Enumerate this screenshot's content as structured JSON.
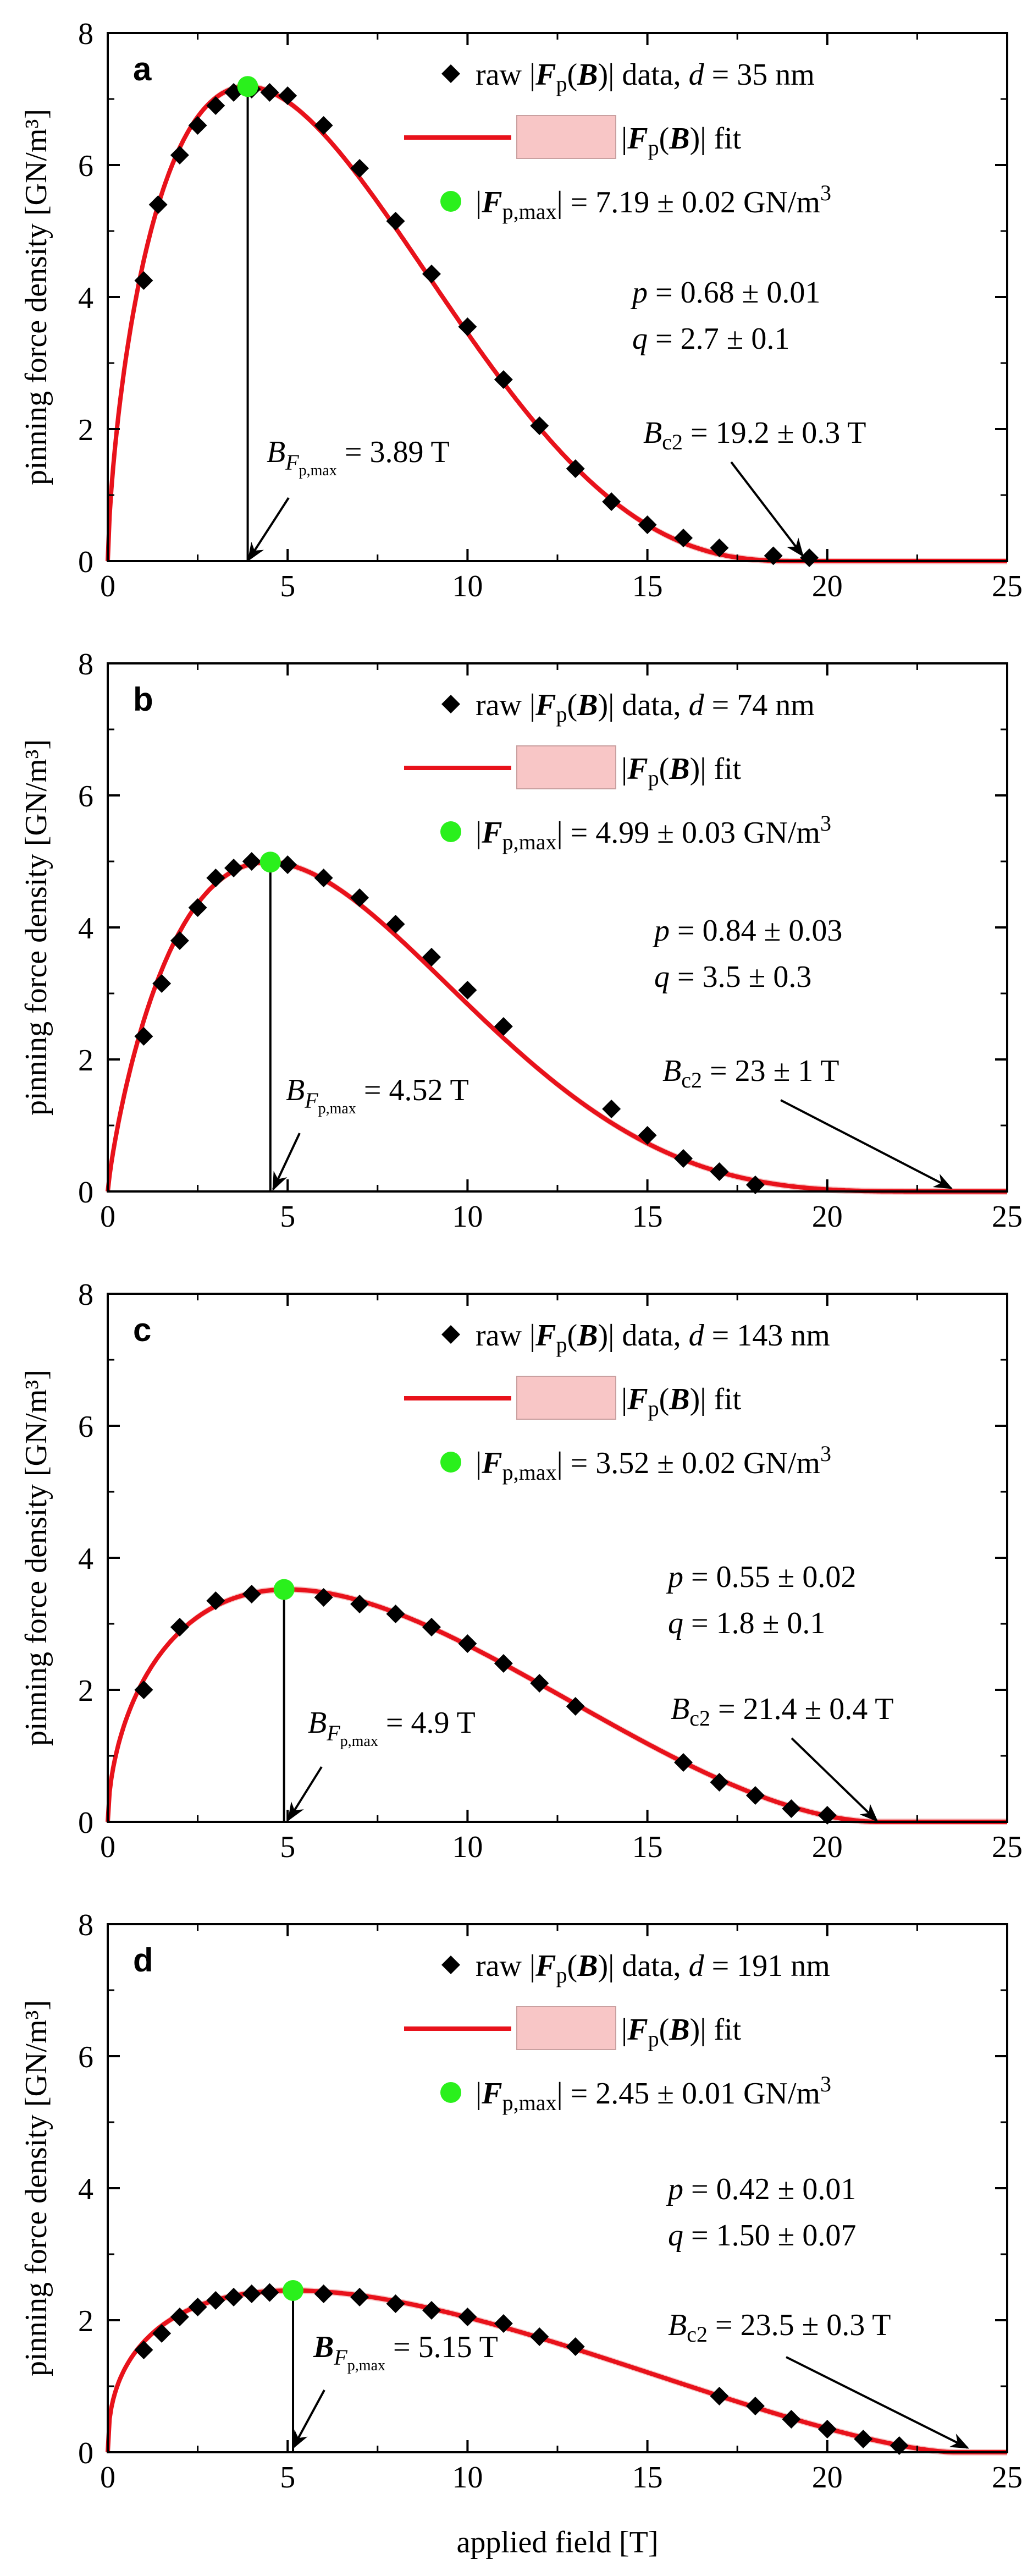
{
  "figure": {
    "y_axis_label": "pinning force density [GN/m³]",
    "x_axis_label": "applied field [T]",
    "colors": {
      "fit_line": "#e8121b",
      "fit_band": "#f8c6c6",
      "max_point": "#2af01c",
      "data_marker": "#000000",
      "axis": "#000000"
    }
  },
  "chart_data": [
    {
      "type": "line",
      "panel_letter": "a",
      "xlim": [
        0,
        25
      ],
      "ylim": [
        0,
        8
      ],
      "xticks": [
        0,
        5,
        10,
        15,
        20,
        25
      ],
      "yticks": [
        0,
        2,
        4,
        6,
        8
      ],
      "ylabel": "pinning force density [GN/m³]",
      "xlabel": "",
      "legend": [
        "raw |Fp(B)| data, d = 35 nm",
        "|Fp(B)| fit",
        "|Fp,max| = 7.19 ± 0.02 GN/m³"
      ],
      "legend_parts": {
        "data_pre": "raw |",
        "data_mid": "(",
        "data_post": ")| data, ",
        "d_label": "d",
        "d_value": " = 35 nm",
        "fit_pre": "|",
        "fit_post": ")| fit",
        "max_pre": "|",
        "max_post": "| = 7.19 ± 0.02 GN/m",
        "max_exp": "3"
      },
      "p_text": " = 0.68 ± 0.01",
      "q_text": " = 2.7 ± 0.1",
      "bc2_text": " = 19.2 ± 0.3 T",
      "bmax_text": " = 3.89 T",
      "bmax_bold": false,
      "Fmax": 7.19,
      "Bmax": 3.89,
      "Bc2": 19.2,
      "p": 0.68,
      "q": 2.7,
      "data": {
        "x": [
          1.0,
          1.4,
          2.0,
          2.5,
          3.0,
          3.5,
          4.0,
          4.5,
          5.0,
          6.0,
          7.0,
          8.0,
          9.0,
          10.0,
          11.0,
          12.0,
          13.0,
          14.0,
          15.0,
          16.0,
          17.0,
          18.5,
          19.5
        ],
        "y": [
          4.25,
          5.4,
          6.15,
          6.6,
          6.9,
          7.1,
          7.15,
          7.1,
          7.05,
          6.6,
          5.95,
          5.15,
          4.35,
          3.55,
          2.75,
          2.05,
          1.4,
          0.9,
          0.55,
          0.35,
          0.2,
          0.08,
          0.05
        ]
      }
    },
    {
      "type": "line",
      "panel_letter": "b",
      "xlim": [
        0,
        25
      ],
      "ylim": [
        0,
        8
      ],
      "xticks": [
        0,
        5,
        10,
        15,
        20,
        25
      ],
      "yticks": [
        0,
        2,
        4,
        6,
        8
      ],
      "ylabel": "pinning force density [GN/m³]",
      "xlabel": "",
      "legend": [
        "raw |Fp(B)| data, d = 74 nm",
        "|Fp(B)| fit",
        "|Fp,max| = 4.99 ± 0.03 GN/m³"
      ],
      "legend_parts": {
        "data_pre": "raw |",
        "data_mid": "(",
        "data_post": ")| data, ",
        "d_label": "d",
        "d_value": " = 74 nm",
        "fit_pre": "|",
        "fit_post": ")| fit",
        "max_pre": "|",
        "max_post": "| = 4.99 ± 0.03 GN/m",
        "max_exp": "3"
      },
      "p_text": " = 0.84 ± 0.03",
      "q_text": " = 3.5 ± 0.3",
      "bc2_text": " = 23 ± 1 T",
      "bmax_text": " = 4.52 T",
      "bmax_bold": false,
      "Fmax": 4.99,
      "Bmax": 4.52,
      "Bc2": 23.0,
      "p": 0.84,
      "q": 3.5,
      "data": {
        "x": [
          1.0,
          1.5,
          2.0,
          2.5,
          3.0,
          3.5,
          4.0,
          5.0,
          6.0,
          7.0,
          8.0,
          9.0,
          10.0,
          11.0,
          14.0,
          15.0,
          16.0,
          17.0,
          18.0
        ],
        "y": [
          2.35,
          3.15,
          3.8,
          4.3,
          4.75,
          4.9,
          5.0,
          4.95,
          4.75,
          4.45,
          4.05,
          3.55,
          3.05,
          2.5,
          1.25,
          0.85,
          0.5,
          0.3,
          0.1
        ]
      }
    },
    {
      "type": "line",
      "panel_letter": "c",
      "xlim": [
        0,
        25
      ],
      "ylim": [
        0,
        8
      ],
      "xticks": [
        0,
        5,
        10,
        15,
        20,
        25
      ],
      "yticks": [
        0,
        2,
        4,
        6,
        8
      ],
      "ylabel": "pinning force density [GN/m³]",
      "xlabel": "",
      "legend": [
        "raw |Fp(B)| data, d = 143 nm",
        "|Fp(B)| fit",
        "|Fp,max| = 3.52 ± 0.02 GN/m³"
      ],
      "legend_parts": {
        "data_pre": "raw |",
        "data_mid": "(",
        "data_post": ")| data, ",
        "d_label": "d",
        "d_value": " = 143 nm",
        "fit_pre": "|",
        "fit_post": ")| fit",
        "max_pre": "|",
        "max_post": "| = 3.52 ± 0.02 GN/m",
        "max_exp": "3"
      },
      "p_text": " = 0.55 ± 0.02",
      "q_text": " = 1.8 ± 0.1",
      "bc2_text": " = 21.4 ± 0.4 T",
      "bmax_text": " = 4.9 T",
      "bmax_bold": false,
      "Fmax": 3.52,
      "Bmax": 4.9,
      "Bc2": 21.4,
      "p": 0.55,
      "q": 1.8,
      "data": {
        "x": [
          1.0,
          2.0,
          3.0,
          4.0,
          6.0,
          7.0,
          8.0,
          9.0,
          10.0,
          11.0,
          12.0,
          13.0,
          16.0,
          17.0,
          18.0,
          19.0,
          20.0
        ],
        "y": [
          2.0,
          2.95,
          3.35,
          3.45,
          3.4,
          3.3,
          3.15,
          2.95,
          2.7,
          2.4,
          2.1,
          1.75,
          0.9,
          0.6,
          0.4,
          0.2,
          0.1
        ]
      }
    },
    {
      "type": "line",
      "panel_letter": "d",
      "xlim": [
        0,
        25
      ],
      "ylim": [
        0,
        8
      ],
      "xticks": [
        0,
        5,
        10,
        15,
        20,
        25
      ],
      "yticks": [
        0,
        2,
        4,
        6,
        8
      ],
      "ylabel": "pinning force density [GN/m³]",
      "xlabel": "applied field [T]",
      "legend": [
        "raw |Fp(B)| data, d = 191 nm",
        "|Fp(B)| fit",
        "|Fp,max| = 2.45 ± 0.01 GN/m³"
      ],
      "legend_parts": {
        "data_pre": "raw |",
        "data_mid": "(",
        "data_post": ")| data, ",
        "d_label": "d",
        "d_value": " = 191 nm",
        "fit_pre": "|",
        "fit_post": ")| fit",
        "max_pre": "|",
        "max_post": "| = 2.45 ± 0.01 GN/m",
        "max_exp": "3"
      },
      "p_text": " = 0.42 ± 0.01",
      "q_text": " = 1.50 ± 0.07",
      "bc2_text": " = 23.5 ± 0.3 T",
      "bmax_text": " = 5.15 T",
      "bmax_bold": true,
      "Fmax": 2.45,
      "Bmax": 5.15,
      "Bc2": 23.5,
      "p": 0.42,
      "q": 1.5,
      "data": {
        "x": [
          1.0,
          1.5,
          2.0,
          2.5,
          3.0,
          3.5,
          4.0,
          4.5,
          6.0,
          7.0,
          8.0,
          9.0,
          10.0,
          11.0,
          12.0,
          13.0,
          17.0,
          18.0,
          19.0,
          20.0,
          21.0,
          22.0
        ],
        "y": [
          1.55,
          1.8,
          2.05,
          2.2,
          2.3,
          2.35,
          2.4,
          2.42,
          2.4,
          2.35,
          2.25,
          2.15,
          2.05,
          1.95,
          1.75,
          1.6,
          0.85,
          0.7,
          0.5,
          0.35,
          0.2,
          0.1
        ]
      }
    }
  ]
}
